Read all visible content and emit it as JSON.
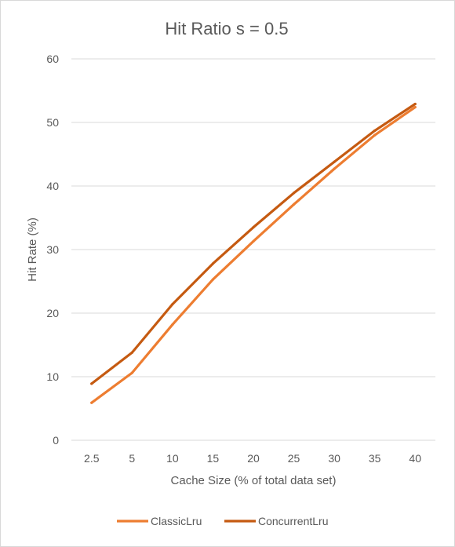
{
  "chart_data": {
    "type": "line",
    "title": "Hit Ratio s = 0.5",
    "xlabel": "Cache Size (% of total data set)",
    "ylabel": "Hit Rate (%)",
    "categories": [
      "2.5",
      "5",
      "10",
      "15",
      "20",
      "25",
      "30",
      "35",
      "40"
    ],
    "ylim": [
      0,
      60
    ],
    "yticks": [
      "0",
      "10",
      "20",
      "30",
      "40",
      "50",
      "60"
    ],
    "grid": true,
    "legend_position": "bottom",
    "series": [
      {
        "name": "ClassicLru",
        "color": "#ED7D31",
        "values": [
          5.9,
          10.6,
          18.2,
          25.3,
          31.3,
          37.1,
          42.7,
          48.0,
          52.4
        ]
      },
      {
        "name": "ConcurrentLru",
        "color": "#C55A11",
        "values": [
          8.9,
          13.8,
          21.4,
          27.8,
          33.5,
          38.9,
          43.8,
          48.7,
          52.9
        ]
      }
    ]
  }
}
